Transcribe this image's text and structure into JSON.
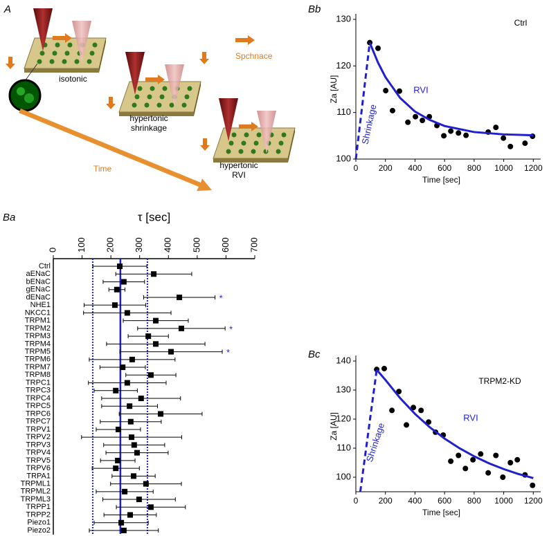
{
  "panel_a": {
    "label": "A",
    "states": [
      [
        "isotonic"
      ],
      [
        "hypertonic",
        "shrinkage"
      ],
      [
        "hypertonic",
        "RVI"
      ]
    ],
    "space_label": "Spchnace",
    "time_label": "Time"
  },
  "chart_data": [
    {
      "type": "errorbar",
      "label": "Ba",
      "xlabel": "τ [sec]",
      "color": "#000000",
      "line_color": "#1f1fd0",
      "categories": [
        "Ctrl",
        "aENaC",
        "bENaC",
        "gENaC",
        "dENaC",
        "NHE1",
        "NKCC1",
        "TRPM1",
        "TRPM2",
        "TRPM3",
        "TRPM4",
        "TRPM5",
        "TRPM6",
        "TRPM7",
        "TRPM8",
        "TRPC1",
        "TRPC3",
        "TRPC4",
        "TRPC5",
        "TRPC6",
        "TRPC7",
        "TRPV1",
        "TRPV2",
        "TRPV3",
        "TRPV4",
        "TRPV5",
        "TRPV6",
        "TRPA1",
        "TRPML1",
        "TRPML2",
        "TRPML3",
        "TRPP1",
        "TRPP2",
        "Piezo1",
        "Piezo2"
      ],
      "values": [
        231,
        349,
        245,
        221,
        438,
        214,
        257,
        356,
        445,
        330,
        356,
        409,
        274,
        241,
        339,
        257,
        217,
        305,
        265,
        373,
        269,
        226,
        272,
        281,
        291,
        224,
        217,
        279,
        322,
        248,
        298,
        339,
        267,
        236,
        245
      ],
      "errors": [
        94,
        132,
        72,
        28,
        124,
        107,
        152,
        113,
        152,
        70,
        171,
        178,
        149,
        79,
        87,
        135,
        75,
        137,
        97,
        144,
        106,
        77,
        174,
        106,
        108,
        60,
        82,
        75,
        123,
        99,
        126,
        120,
        91,
        94,
        120
      ],
      "significance": [
        null,
        null,
        null,
        null,
        "*",
        null,
        null,
        null,
        "*",
        null,
        null,
        "*",
        null,
        null,
        null,
        null,
        null,
        null,
        null,
        null,
        null,
        null,
        null,
        null,
        null,
        null,
        null,
        null,
        null,
        null,
        null,
        null,
        null,
        null,
        null
      ],
      "ref_lines": [
        {
          "value": 233,
          "style": "solid"
        },
        {
          "value": 137,
          "style": "dotted"
        },
        {
          "value": 327,
          "style": "dotted"
        }
      ],
      "xlim": [
        0,
        700
      ],
      "xticks": [
        0,
        100,
        200,
        300,
        400,
        500,
        600,
        700
      ]
    },
    {
      "type": "scatter",
      "label": "Bb",
      "annotation": "Ctrl",
      "xlabel": "Time [sec]",
      "ylabel": "Za [AU]",
      "xlim": [
        0,
        1250
      ],
      "ylim": [
        100,
        130
      ],
      "xticks": [
        0,
        200,
        400,
        600,
        800,
        1000,
        1200
      ],
      "yticks": [
        100,
        110,
        120,
        130
      ],
      "series": [
        {
          "mode": "markers",
          "color": "#000000",
          "x": [
            94,
            150,
            202,
            248,
            295,
            352,
            403,
            450,
            497,
            548,
            595,
            642,
            694,
            745,
            895,
            947,
            998,
            1045,
            1144,
            1195
          ],
          "values": [
            125,
            123.8,
            114.7,
            110.4,
            114.6,
            107.9,
            109.1,
            108.3,
            109.1,
            107.2,
            105,
            106,
            105.6,
            105.1,
            105.8,
            106.8,
            104.5,
            102.7,
            103.4,
            104.9
          ]
        },
        {
          "name": "RVI",
          "mode": "line",
          "color": "#1f1fd0",
          "x": [
            94,
            150,
            200,
            300,
            400,
            500,
            600,
            800,
            1000,
            1200
          ],
          "values": [
            125,
            120.7,
            117.6,
            113.1,
            110.2,
            108.4,
            107.1,
            105.8,
            105.3,
            105.1
          ]
        },
        {
          "name": "Shrinkage",
          "mode": "dashed",
          "color": "#1f1fd0",
          "x": [
            0,
            94
          ],
          "values": [
            100,
            125
          ]
        }
      ]
    },
    {
      "type": "scatter",
      "label": "Bc",
      "annotation": "TRPM2-KD",
      "xlabel": "Time [sec]",
      "ylabel": "Za [AU]",
      "xlim": [
        0,
        1250
      ],
      "ylim": [
        95,
        140
      ],
      "xticks": [
        0,
        200,
        400,
        600,
        800,
        1000,
        1200
      ],
      "yticks": [
        100,
        110,
        120,
        130,
        140
      ],
      "series": [
        {
          "mode": "markers",
          "color": "#000000",
          "x": [
            141,
            192,
            244,
            291,
            342,
            389,
            441,
            492,
            539,
            591,
            642,
            694,
            741,
            792,
            844,
            895,
            947,
            994,
            1045,
            1092,
            1144,
            1195
          ],
          "values": [
            137.1,
            137.4,
            123,
            129.5,
            118,
            124,
            123,
            119,
            115.5,
            114.5,
            105.5,
            107.5,
            103,
            106,
            108,
            101.5,
            107.5,
            100,
            105,
            106,
            100.8,
            97.2
          ]
        },
        {
          "name": "RVI",
          "mode": "line",
          "color": "#1f1fd0",
          "x": [
            141,
            200,
            300,
            400,
            500,
            600,
            700,
            800,
            900,
            1000,
            1100,
            1200
          ],
          "values": [
            137,
            133.5,
            127.2,
            121.8,
            117.2,
            113.3,
            110,
            107.2,
            104.8,
            102.8,
            101.1,
            99.7
          ]
        },
        {
          "name": "Shrinkage",
          "mode": "dashed",
          "color": "#1f1fd0",
          "x": [
            30,
            141
          ],
          "values": [
            95,
            137
          ]
        }
      ]
    }
  ]
}
